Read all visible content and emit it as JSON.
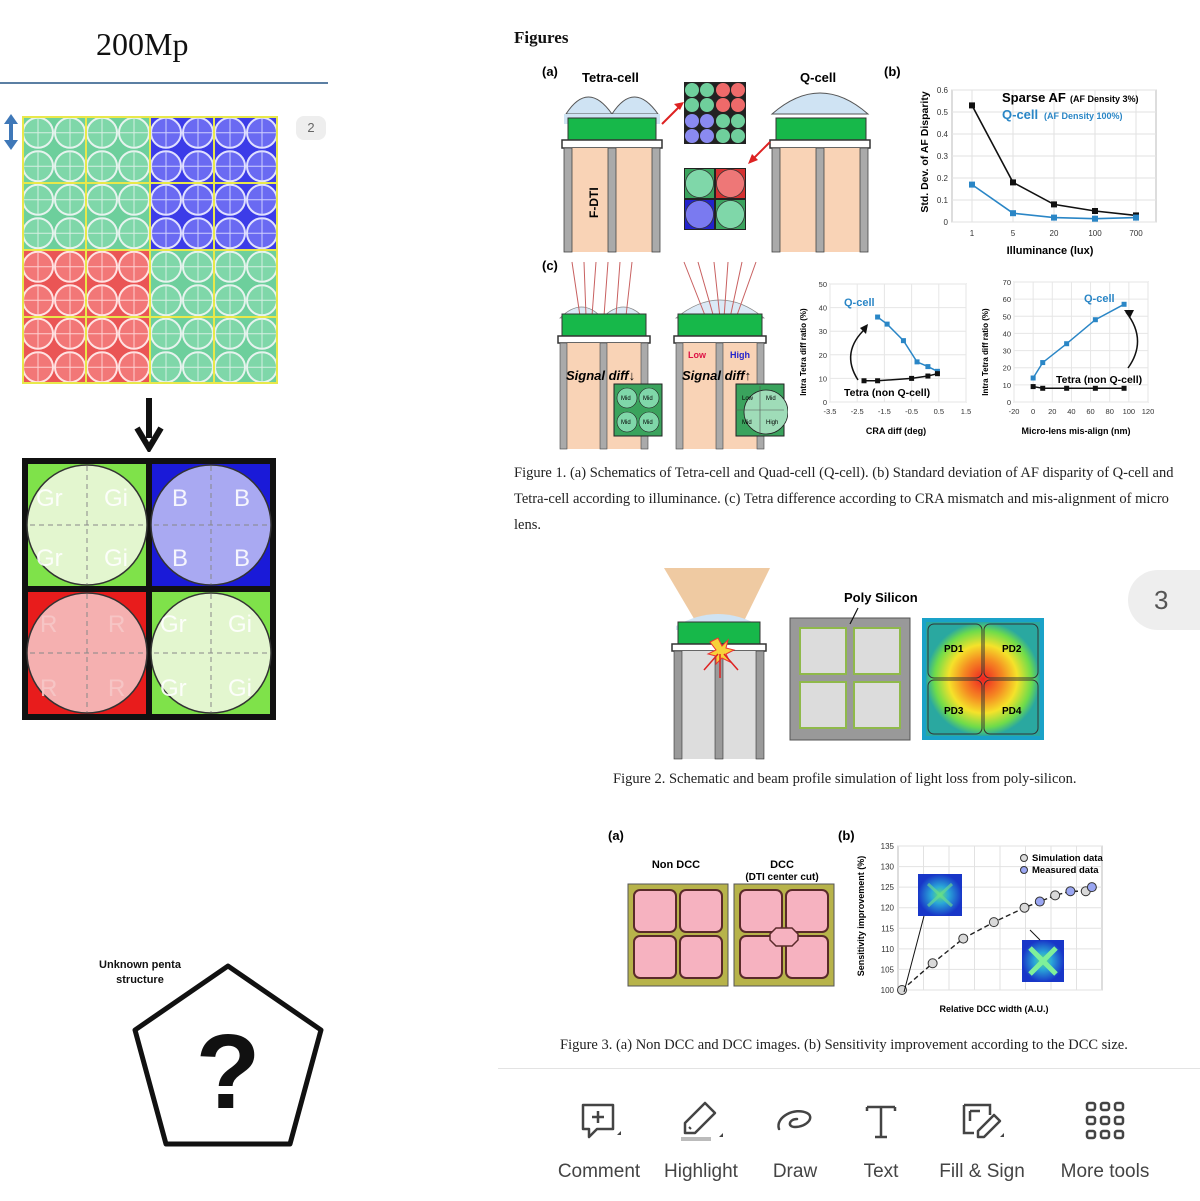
{
  "left": {
    "title": "200Mp",
    "page_badge": "2",
    "cell_labels": {
      "gr": "Gr",
      "gr_partial": "Gi",
      "b": "B",
      "r": "R"
    },
    "penta_label": "Unknown penta structure",
    "question_mark": "?"
  },
  "figures": {
    "heading": "Figures",
    "fig1": {
      "panel_a": "(a)",
      "panel_b": "(b)",
      "panel_c": "(c)",
      "tetra_cell": "Tetra-cell",
      "q_cell": "Q-cell",
      "fdti": "F-DTI",
      "chart_b": {
        "legend_sparse": "Sparse AF",
        "legend_sparse_note": "(AF Density 3%)",
        "legend_q": "Q-cell",
        "legend_q_note": "(AF Density 100%)",
        "ylabel": "Std. Dev. of AF Disparity",
        "xlabel": "Illuminance (lux)"
      },
      "signal_down": "Signal diff↓",
      "signal_up": "Signal diff↑",
      "low": "Low",
      "high": "High",
      "mid": "Mid",
      "chart_c1": {
        "q_label": "Q-cell",
        "tetra_label": "Tetra (non Q-cell)",
        "ylabel": "Intra Tetra diff ratio (%)",
        "xlabel": "CRA diff (deg)"
      },
      "chart_c2": {
        "q_label": "Q-cell",
        "tetra_label": "Tetra (non Q-cell)",
        "ylabel": "Intra Tetra diff ratio (%)",
        "xlabel": "Micro-lens mis-align (nm)"
      },
      "caption": "Figure 1. (a) Schematics of Tetra-cell and Quad-cell (Q-cell). (b) Standard deviation of AF disparity of Q-cell and Tetra-cell according to illuminance. (c) Tetra difference according to CRA mismatch and mis-alignment of micro lens."
    },
    "fig2": {
      "poly_silicon": "Poly Silicon",
      "pd_labels": [
        "PD1",
        "PD2",
        "PD3",
        "PD4"
      ],
      "caption": "Figure 2. Schematic and beam profile simulation of light loss from poly-silicon.",
      "page_badge": "3"
    },
    "fig3": {
      "panel_a": "(a)",
      "panel_b": "(b)",
      "non_dcc": "Non DCC",
      "dcc": "DCC",
      "dcc_sub": "(DTI center cut)",
      "legend_sim": "Simulation data",
      "legend_meas": "Measured data",
      "ylabel": "Sensitivity improvement (%)",
      "xlabel": "Relative DCC width (A.U.)",
      "caption": "Figure 3. (a) Non DCC and DCC images. (b) Sensitivity improvement according to the DCC size."
    }
  },
  "chart_data": [
    {
      "type": "line",
      "x": [
        "1",
        "5",
        "20",
        "100",
        "700"
      ],
      "series": [
        {
          "name": "Sparse AF",
          "values": [
            0.53,
            0.18,
            0.08,
            0.05,
            0.03
          ]
        },
        {
          "name": "Q-cell",
          "values": [
            0.17,
            0.04,
            0.02,
            0.015,
            0.02
          ]
        }
      ],
      "yticks": [
        "0",
        "0.1",
        "0.2",
        "0.3",
        "0.4",
        "0.5",
        "0.6"
      ],
      "xlabel": "Illuminance (lux)",
      "ylabel": "Std. Dev. of AF Disparity",
      "ylim": [
        0,
        0.6
      ]
    },
    {
      "type": "line",
      "series": [
        {
          "name": "Q-cell",
          "x": [
            -1.75,
            -1.4,
            -0.8,
            -0.3,
            0.1,
            0.45
          ],
          "values": [
            36,
            33,
            26,
            17,
            15,
            13
          ]
        },
        {
          "name": "Tetra (non Q-cell)",
          "x": [
            -2.25,
            -1.75,
            -0.5,
            0.1,
            0.45
          ],
          "values": [
            9,
            9,
            10,
            11,
            12
          ]
        }
      ],
      "xticks": [
        "-3.5",
        "-2.5",
        "-1.5",
        "-0.5",
        "0.5",
        "1.5"
      ],
      "yticks": [
        "0",
        "10",
        "20",
        "30",
        "40",
        "50"
      ],
      "xlabel": "CRA diff (deg)",
      "ylabel": "Intra Tetra diff ratio (%)",
      "xlim": [
        -3.5,
        1.5
      ],
      "ylim": [
        0,
        50
      ]
    },
    {
      "type": "line",
      "series": [
        {
          "name": "Q-cell",
          "x": [
            0,
            10,
            35,
            65,
            95
          ],
          "values": [
            14,
            23,
            34,
            48,
            57
          ]
        },
        {
          "name": "Tetra (non Q-cell)",
          "x": [
            0,
            10,
            35,
            65,
            95
          ],
          "values": [
            9,
            8,
            8,
            8,
            8
          ]
        }
      ],
      "xticks": [
        "-20",
        "0",
        "20",
        "40",
        "60",
        "80",
        "100",
        "120"
      ],
      "yticks": [
        "0",
        "10",
        "20",
        "30",
        "40",
        "50",
        "60",
        "70"
      ],
      "xlabel": "Micro-lens mis-align (nm)",
      "ylabel": "Intra Tetra diff ratio (%)",
      "xlim": [
        -20,
        120
      ],
      "ylim": [
        0,
        70
      ]
    },
    {
      "type": "scatter",
      "series": [
        {
          "name": "Simulation data",
          "x": [
            0,
            1,
            2,
            3,
            4,
            5,
            6
          ],
          "values": [
            100,
            106.5,
            112.5,
            116.5,
            120,
            123,
            124
          ]
        },
        {
          "name": "Measured data",
          "x": [
            4.5,
            5.5,
            6.2
          ],
          "values": [
            121.5,
            124,
            125
          ]
        }
      ],
      "yticks": [
        "100",
        "105",
        "110",
        "115",
        "120",
        "125",
        "130",
        "135"
      ],
      "xlabel": "Relative DCC width (A.U.)",
      "ylabel": "Sensitivity improvement (%)",
      "ylim": [
        100,
        135
      ]
    }
  ],
  "toolbar": {
    "items": [
      {
        "label": "Comment",
        "icon": "comment-icon"
      },
      {
        "label": "Highlight",
        "icon": "highlight-icon"
      },
      {
        "label": "Draw",
        "icon": "draw-icon"
      },
      {
        "label": "Text",
        "icon": "text-icon"
      },
      {
        "label": "Fill & Sign",
        "icon": "fill-sign-icon"
      },
      {
        "label": "More tools",
        "icon": "more-tools-icon"
      }
    ]
  }
}
